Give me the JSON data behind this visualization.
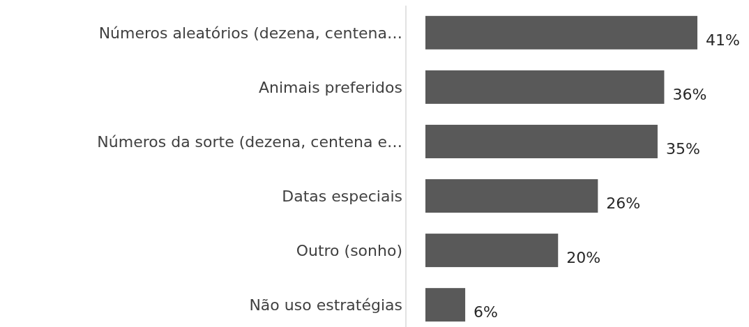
{
  "chart_data": {
    "type": "bar",
    "orientation": "horizontal",
    "categories": [
      "Números aleatórios (dezena, centena…",
      "Animais preferidos",
      "Números da sorte (dezena, centena e…",
      "Datas especiais",
      "Outro (sonho)",
      "Não uso estratégias"
    ],
    "values": [
      41,
      36,
      35,
      26,
      20,
      6
    ],
    "value_labels": [
      "41%",
      "36%",
      "35%",
      "26%",
      "20%",
      "6%"
    ],
    "color": "#595959"
  }
}
